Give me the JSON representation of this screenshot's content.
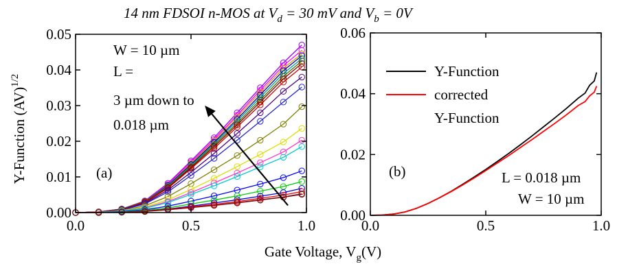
{
  "figure": {
    "title_parts": {
      "prefix": "14 nm FDSOI n-MOS at  V",
      "vd_sub": "d",
      "middle": " = 30 mV  and  V",
      "vb_sub": "b",
      "suffix": " = 0V"
    },
    "shared_xlabel_parts": {
      "main": "Gate Voltage, V",
      "sub": "g",
      "tail": "(V)"
    },
    "ylabel_parts": {
      "main": "Y-Function (AV)",
      "sup": "1/2"
    }
  },
  "chart_data": [
    {
      "id": "a",
      "type": "line",
      "panel_label": "(a)",
      "xlim": [
        0.0,
        1.0
      ],
      "ylim": [
        0.0,
        0.05
      ],
      "xticks": [
        "0.0",
        "0.5",
        "1.0"
      ],
      "yticks": [
        "0.00",
        "0.01",
        "0.02",
        "0.03",
        "0.04",
        "0.05"
      ],
      "ytick_values": [
        0.0,
        0.01,
        0.02,
        0.03,
        0.04,
        0.05
      ],
      "xtick_values": [
        0.0,
        0.5,
        1.0
      ],
      "markers": "open-circle",
      "annotations": {
        "w_label": "W = 10 µm",
        "l_label": "L =",
        "range_label": "3 µm down to",
        "min_label": "0.018 µm"
      },
      "arrow": {
        "from": [
          0.92,
          0.002
        ],
        "to": [
          0.56,
          0.03
        ]
      },
      "x": [
        0.0,
        0.1,
        0.2,
        0.3,
        0.4,
        0.5,
        0.6,
        0.7,
        0.8,
        0.9,
        0.98
      ],
      "series": [
        {
          "color": "#9900ff",
          "values": [
            0.0,
            0.0002,
            0.001,
            0.0033,
            0.0082,
            0.0145,
            0.021,
            0.028,
            0.035,
            0.042,
            0.047
          ]
        },
        {
          "color": "#ff00ff",
          "values": [
            0.0,
            0.0002,
            0.001,
            0.0032,
            0.0079,
            0.0141,
            0.0205,
            0.0273,
            0.0343,
            0.0412,
            0.0455
          ]
        },
        {
          "color": "#e89a00",
          "values": [
            0.0,
            0.0002,
            0.001,
            0.0032,
            0.0077,
            0.0138,
            0.0201,
            0.0268,
            0.0337,
            0.0405,
            0.0445
          ]
        },
        {
          "color": "#0000aa",
          "values": [
            0.0,
            0.0002,
            0.001,
            0.0031,
            0.0076,
            0.0135,
            0.0197,
            0.0262,
            0.033,
            0.0398,
            0.044
          ]
        },
        {
          "color": "#009999",
          "values": [
            0.0,
            0.0002,
            0.001,
            0.003,
            0.0074,
            0.0132,
            0.0193,
            0.0257,
            0.0323,
            0.039,
            0.0432
          ]
        },
        {
          "color": "#556b00",
          "values": [
            0.0,
            0.0002,
            0.0009,
            0.003,
            0.0072,
            0.0129,
            0.0189,
            0.0251,
            0.0316,
            0.0382,
            0.0425
          ]
        },
        {
          "color": "#800000",
          "values": [
            0.0,
            0.0002,
            0.0009,
            0.0029,
            0.007,
            0.0126,
            0.0185,
            0.0246,
            0.031,
            0.0375,
            0.0418
          ]
        },
        {
          "color": "#cc0000",
          "values": [
            0.0,
            0.0002,
            0.0009,
            0.0028,
            0.0068,
            0.0123,
            0.018,
            0.024,
            0.0302,
            0.0366,
            0.0408
          ]
        },
        {
          "color": "#4b0082",
          "values": [
            0.0,
            0.0001,
            0.0008,
            0.0026,
            0.0063,
            0.0113,
            0.0166,
            0.0222,
            0.028,
            0.034,
            0.038
          ]
        },
        {
          "color": "#2222cc",
          "values": [
            0.0,
            0.0001,
            0.0007,
            0.0024,
            0.0058,
            0.0104,
            0.0152,
            0.0203,
            0.0256,
            0.031,
            0.0352
          ]
        },
        {
          "color": "#808000",
          "values": [
            0.0,
            0.0001,
            0.0006,
            0.0019,
            0.0045,
            0.0081,
            0.012,
            0.016,
            0.0203,
            0.0248,
            0.0297
          ]
        },
        {
          "color": "#dddd00",
          "values": [
            0.0,
            0.0001,
            0.0005,
            0.0015,
            0.0036,
            0.0065,
            0.0096,
            0.0129,
            0.0163,
            0.0198,
            0.0236
          ]
        },
        {
          "color": "#ff33cc",
          "values": [
            0.0,
            0.0001,
            0.0004,
            0.0013,
            0.0031,
            0.0056,
            0.0083,
            0.0111,
            0.014,
            0.017,
            0.0203
          ]
        },
        {
          "color": "#00cccc",
          "values": [
            0.0,
            0.0001,
            0.0004,
            0.0012,
            0.0028,
            0.0051,
            0.0075,
            0.0101,
            0.0128,
            0.0155,
            0.0185
          ]
        },
        {
          "color": "#0000ff",
          "values": [
            0.0,
            0.0,
            0.0003,
            0.0008,
            0.0018,
            0.0032,
            0.0047,
            0.0063,
            0.008,
            0.0098,
            0.0117
          ]
        },
        {
          "color": "#00cc00",
          "values": [
            0.0,
            0.0,
            0.0002,
            0.0006,
            0.0013,
            0.0024,
            0.0035,
            0.0047,
            0.006,
            0.0073,
            0.0087
          ]
        },
        {
          "color": "#0000dd",
          "values": [
            0.0,
            0.0,
            0.0001,
            0.0004,
            0.001,
            0.0018,
            0.0027,
            0.0036,
            0.0046,
            0.0056,
            0.0068
          ]
        },
        {
          "color": "#ff0000",
          "values": [
            0.0,
            0.0,
            0.0001,
            0.0004,
            0.0009,
            0.0016,
            0.0023,
            0.0031,
            0.004,
            0.0049,
            0.0059
          ]
        },
        {
          "color": "#555555",
          "values": [
            0.0,
            0.0,
            0.0001,
            0.0003,
            0.0008,
            0.0014,
            0.0021,
            0.0028,
            0.0036,
            0.0044,
            0.0053
          ]
        },
        {
          "color": "#8b0000",
          "values": [
            0.0,
            0.0,
            0.0001,
            0.0003,
            0.0008,
            0.0014,
            0.002,
            0.0027,
            0.0035,
            0.0043,
            0.0051
          ]
        }
      ]
    },
    {
      "id": "b",
      "type": "line",
      "panel_label": "(b)",
      "xlim": [
        0.0,
        1.0
      ],
      "ylim": [
        0.0,
        0.06
      ],
      "xticks": [
        "0.0",
        "0.5",
        "1.0"
      ],
      "yticks": [
        "0.00",
        "0.02",
        "0.04",
        "0.06"
      ],
      "ytick_values": [
        0.0,
        0.02,
        0.04,
        0.06
      ],
      "xtick_values": [
        0.0,
        0.5,
        1.0
      ],
      "legend_placement": "top-left",
      "legend": [
        {
          "label": "Y-Function",
          "color": "#000000"
        },
        {
          "label": "corrected",
          "color": "#ff0000"
        }
      ],
      "legend_continuation": "Y-Function",
      "annotations": {
        "l_label": "L = 0.018 µm",
        "w_label": "W = 10 µm"
      },
      "x": [
        0.0,
        0.05,
        0.1,
        0.15,
        0.2,
        0.25,
        0.3,
        0.35,
        0.4,
        0.45,
        0.5,
        0.55,
        0.6,
        0.65,
        0.7,
        0.75,
        0.8,
        0.85,
        0.9,
        0.93,
        0.95,
        0.97,
        0.98
      ],
      "series": [
        {
          "name": "Y-Function",
          "color": "#000000",
          "values": [
            0.0,
            0.0001,
            0.0004,
            0.0011,
            0.0023,
            0.0039,
            0.0058,
            0.0079,
            0.0102,
            0.0126,
            0.0151,
            0.0177,
            0.0204,
            0.0232,
            0.0261,
            0.0291,
            0.0321,
            0.0352,
            0.0385,
            0.0402,
            0.0428,
            0.0442,
            0.047
          ]
        },
        {
          "name": "corrected Y-Function",
          "color": "#ff0000",
          "values": [
            0.0,
            0.0001,
            0.0004,
            0.0011,
            0.0023,
            0.0039,
            0.0058,
            0.0078,
            0.01,
            0.0123,
            0.0147,
            0.0172,
            0.0197,
            0.0223,
            0.0249,
            0.0276,
            0.0303,
            0.0331,
            0.0361,
            0.0374,
            0.0393,
            0.0405,
            0.0425
          ]
        }
      ]
    }
  ]
}
